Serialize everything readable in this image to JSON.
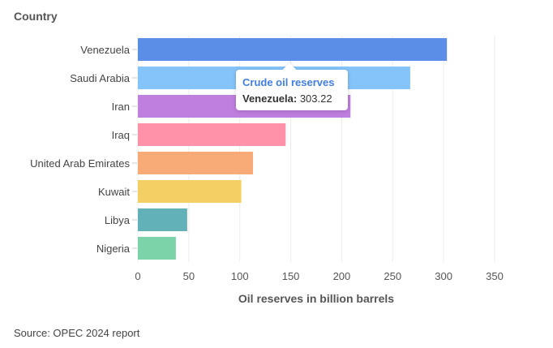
{
  "chart_data": {
    "type": "bar",
    "orientation": "horizontal",
    "title": "Country",
    "xlabel": "Oil reserves in billion barrels",
    "categories": [
      "Venezuela",
      "Saudi Arabia",
      "Iran",
      "Iraq",
      "United Arab Emirates",
      "Kuwait",
      "Libya",
      "Nigeria"
    ],
    "values": [
      303.22,
      267.2,
      208.6,
      145,
      113,
      101.5,
      48.4,
      37.3
    ],
    "colors": [
      "#5b8ee6",
      "#85c4fb",
      "#bf7fdf",
      "#ff92a8",
      "#f9ab77",
      "#f4cf63",
      "#62b0b8",
      "#7dd3a9"
    ],
    "xlim": [
      0,
      350
    ],
    "xticks": [
      0,
      50,
      100,
      150,
      200,
      250,
      300,
      350
    ],
    "grid": true,
    "tooltip": {
      "series": "Crude oil reserves",
      "label": "Venezuela:",
      "value": "303.22"
    },
    "source": "Source: OPEC 2024 report"
  }
}
